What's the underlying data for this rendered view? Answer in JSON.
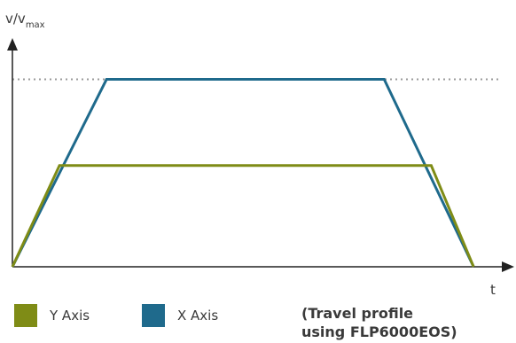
{
  "chart_data": {
    "type": "line",
    "ylabel_main": "v/v",
    "ylabel_sub": "max",
    "xlabel": "t",
    "reference_line": {
      "y": 1.0,
      "style": "dotted",
      "color": "#9a9a9a"
    },
    "series": [
      {
        "name": "X Axis",
        "color": "#1f6a8c",
        "points": [
          [
            0,
            0
          ],
          [
            1.0,
            1.0
          ],
          [
            3.95,
            1.0
          ],
          [
            4.9,
            0
          ]
        ]
      },
      {
        "name": "Y Axis",
        "color": "#7f8c16",
        "points": [
          [
            0,
            0
          ],
          [
            0.5,
            0.54
          ],
          [
            4.45,
            0.54
          ],
          [
            4.9,
            0
          ]
        ]
      }
    ],
    "xlim": [
      0,
      5.2
    ],
    "ylim": [
      0,
      1.22
    ]
  },
  "legend": [
    {
      "label": "Y Axis",
      "color": "#7f8c16"
    },
    {
      "label": "X Axis",
      "color": "#1f6a8c"
    }
  ],
  "note": {
    "line1": "(Travel profile",
    "line2": "using FLP6000EOS)"
  }
}
